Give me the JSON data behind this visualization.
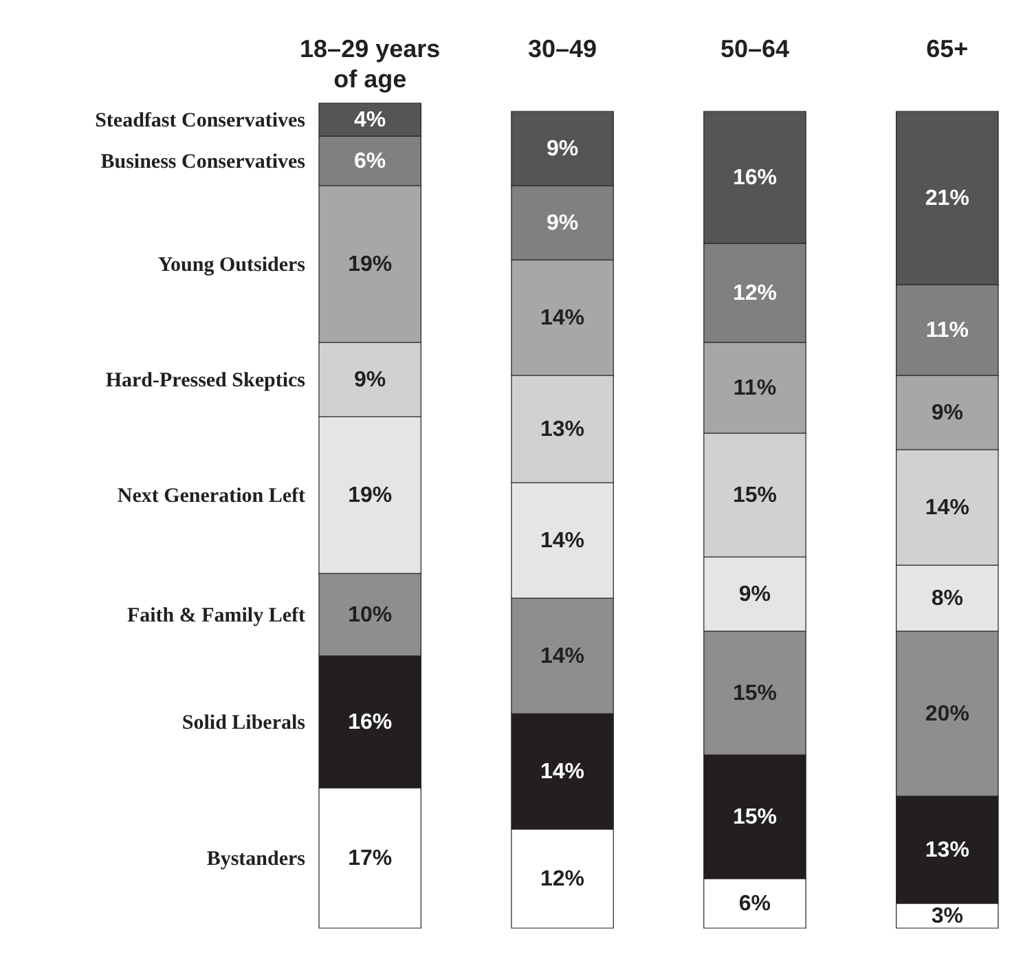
{
  "chart_data": {
    "type": "bar",
    "stacked": true,
    "categories": [
      "18–29 years\nof age",
      "30–49",
      "50–64",
      "65+"
    ],
    "series": [
      {
        "name": "Bystanders",
        "color": "#ffffff",
        "values": [
          17,
          12,
          6,
          3
        ],
        "value_labels": [
          "17%",
          "12%",
          "6%",
          "3%"
        ]
      },
      {
        "name": "Solid Liberals",
        "color": "#231f20",
        "values": [
          16,
          14,
          15,
          13
        ],
        "value_labels": [
          "16%",
          "14%",
          "15%",
          "13%"
        ]
      },
      {
        "name": "Faith & Family Left",
        "color": "#8e8e8e",
        "values": [
          10,
          14,
          15,
          20
        ],
        "value_labels": [
          "10%",
          "14%",
          "15%",
          "20%"
        ]
      },
      {
        "name": "Next Generation Left",
        "color": "#e5e5e6",
        "values": [
          19,
          14,
          9,
          8
        ],
        "value_labels": [
          "19%",
          "14%",
          "9%",
          "8%"
        ]
      },
      {
        "name": "Hard-Pressed Skeptics",
        "color": "#d1d1d2",
        "values": [
          9,
          13,
          15,
          14
        ],
        "value_labels": [
          "9%",
          "13%",
          "15%",
          "14%"
        ]
      },
      {
        "name": "Young Outsiders",
        "color": "#a7a7a8",
        "values": [
          19,
          14,
          11,
          9
        ],
        "value_labels": [
          "19%",
          "14%",
          "11%",
          "9%"
        ]
      },
      {
        "name": "Business Conservatives",
        "color": "#808080",
        "values": [
          6,
          9,
          12,
          11
        ],
        "value_labels": [
          "6%",
          "9%",
          "12%",
          "11%"
        ]
      },
      {
        "name": "Steadfast Conservatives",
        "color": "#555555",
        "values": [
          4,
          9,
          16,
          21
        ],
        "value_labels": [
          "4%",
          "9%",
          "16%",
          "21%"
        ]
      }
    ]
  }
}
